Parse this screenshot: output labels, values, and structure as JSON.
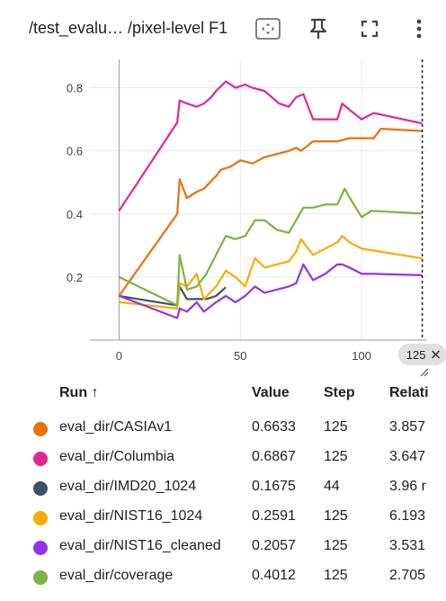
{
  "header": {
    "title": "/test_evalu… /pixel-level F1",
    "icons": [
      "fit-domain-icon",
      "pin-icon",
      "fullscreen-icon",
      "more-vert-icon"
    ]
  },
  "chart_data": {
    "type": "line",
    "title": "",
    "xlabel": "",
    "ylabel": "",
    "xlim": [
      -12,
      127
    ],
    "ylim": [
      0,
      0.89
    ],
    "x_ticks": [
      "0",
      "50",
      "100"
    ],
    "y_ticks": [
      "0.2",
      "0.4",
      "0.6",
      "0.8"
    ],
    "hover_x": 125,
    "hover_label": "125",
    "series": [
      {
        "name": "eval_dir/CASIAv1",
        "color": "#e8710a",
        "points": [
          [
            0,
            0.14
          ],
          [
            24,
            0.4
          ],
          [
            25,
            0.51
          ],
          [
            28,
            0.45
          ],
          [
            32,
            0.47
          ],
          [
            35,
            0.48
          ],
          [
            40,
            0.52
          ],
          [
            42,
            0.54
          ],
          [
            46,
            0.55
          ],
          [
            50,
            0.57
          ],
          [
            55,
            0.56
          ],
          [
            60,
            0.58
          ],
          [
            65,
            0.59
          ],
          [
            70,
            0.6
          ],
          [
            73,
            0.61
          ],
          [
            75,
            0.6
          ],
          [
            80,
            0.63
          ],
          [
            85,
            0.63
          ],
          [
            90,
            0.63
          ],
          [
            95,
            0.64
          ],
          [
            100,
            0.64
          ],
          [
            105,
            0.64
          ],
          [
            108,
            0.67
          ],
          [
            125,
            0.663
          ]
        ]
      },
      {
        "name": "eval_dir/Columbia",
        "color": "#e52592",
        "points": [
          [
            0,
            0.41
          ],
          [
            24,
            0.69
          ],
          [
            25,
            0.76
          ],
          [
            28,
            0.75
          ],
          [
            32,
            0.74
          ],
          [
            35,
            0.75
          ],
          [
            38,
            0.77
          ],
          [
            40,
            0.79
          ],
          [
            44,
            0.82
          ],
          [
            48,
            0.8
          ],
          [
            52,
            0.81
          ],
          [
            55,
            0.8
          ],
          [
            60,
            0.79
          ],
          [
            66,
            0.75
          ],
          [
            70,
            0.74
          ],
          [
            73,
            0.77
          ],
          [
            76,
            0.78
          ],
          [
            80,
            0.7
          ],
          [
            85,
            0.7
          ],
          [
            90,
            0.7
          ],
          [
            92,
            0.75
          ],
          [
            95,
            0.73
          ],
          [
            100,
            0.7
          ],
          [
            105,
            0.72
          ],
          [
            125,
            0.687
          ]
        ]
      },
      {
        "name": "eval_dir/IMD20_1024",
        "color": "#425066",
        "points": [
          [
            0,
            0.14
          ],
          [
            24,
            0.11
          ],
          [
            25,
            0.17
          ],
          [
            28,
            0.13
          ],
          [
            32,
            0.13
          ],
          [
            36,
            0.13
          ],
          [
            40,
            0.14
          ],
          [
            44,
            0.1675
          ]
        ]
      },
      {
        "name": "eval_dir/NIST16_1024",
        "color": "#f9ab00",
        "points": [
          [
            0,
            0.12
          ],
          [
            24,
            0.1
          ],
          [
            25,
            0.18
          ],
          [
            28,
            0.17
          ],
          [
            32,
            0.21
          ],
          [
            35,
            0.13
          ],
          [
            40,
            0.17
          ],
          [
            44,
            0.22
          ],
          [
            48,
            0.2
          ],
          [
            52,
            0.17
          ],
          [
            56,
            0.26
          ],
          [
            60,
            0.23
          ],
          [
            65,
            0.24
          ],
          [
            70,
            0.25
          ],
          [
            73,
            0.28
          ],
          [
            75,
            0.32
          ],
          [
            80,
            0.27
          ],
          [
            85,
            0.29
          ],
          [
            90,
            0.31
          ],
          [
            92,
            0.33
          ],
          [
            95,
            0.31
          ],
          [
            100,
            0.29
          ],
          [
            125,
            0.2591
          ]
        ]
      },
      {
        "name": "eval_dir/NIST16_cleaned",
        "color": "#9334e6",
        "points": [
          [
            0,
            0.14
          ],
          [
            24,
            0.07
          ],
          [
            25,
            0.1
          ],
          [
            28,
            0.09
          ],
          [
            32,
            0.12
          ],
          [
            35,
            0.09
          ],
          [
            40,
            0.12
          ],
          [
            44,
            0.14
          ],
          [
            48,
            0.12
          ],
          [
            52,
            0.14
          ],
          [
            56,
            0.17
          ],
          [
            60,
            0.15
          ],
          [
            65,
            0.16
          ],
          [
            70,
            0.17
          ],
          [
            73,
            0.18
          ],
          [
            76,
            0.24
          ],
          [
            80,
            0.19
          ],
          [
            85,
            0.21
          ],
          [
            90,
            0.24
          ],
          [
            92,
            0.24
          ],
          [
            95,
            0.23
          ],
          [
            100,
            0.21
          ],
          [
            105,
            0.21
          ],
          [
            125,
            0.2057
          ]
        ]
      },
      {
        "name": "eval_dir/coverage",
        "color": "#7cb342",
        "points": [
          [
            0,
            0.2
          ],
          [
            24,
            0.11
          ],
          [
            25,
            0.27
          ],
          [
            28,
            0.16
          ],
          [
            32,
            0.17
          ],
          [
            36,
            0.21
          ],
          [
            40,
            0.27
          ],
          [
            44,
            0.33
          ],
          [
            48,
            0.32
          ],
          [
            52,
            0.33
          ],
          [
            56,
            0.38
          ],
          [
            60,
            0.38
          ],
          [
            65,
            0.35
          ],
          [
            70,
            0.34
          ],
          [
            73,
            0.38
          ],
          [
            76,
            0.42
          ],
          [
            80,
            0.42
          ],
          [
            85,
            0.43
          ],
          [
            90,
            0.43
          ],
          [
            93,
            0.48
          ],
          [
            96,
            0.44
          ],
          [
            100,
            0.39
          ],
          [
            104,
            0.41
          ],
          [
            125,
            0.4012
          ]
        ]
      }
    ]
  },
  "table": {
    "headers": {
      "run": "Run ↑",
      "value": "Value",
      "step": "Step",
      "relative": "Relati"
    },
    "rows": [
      {
        "run": "eval_dir/CASIAv1",
        "value": "0.6633",
        "step": "125",
        "relative": "3.857",
        "color": "#e8710a"
      },
      {
        "run": "eval_dir/Columbia",
        "value": "0.6867",
        "step": "125",
        "relative": "3.647",
        "color": "#e52592"
      },
      {
        "run": "eval_dir/IMD20_1024",
        "value": "0.1675",
        "step": "44",
        "relative": "3.96 r",
        "color": "#425066"
      },
      {
        "run": "eval_dir/NIST16_1024",
        "value": "0.2591",
        "step": "125",
        "relative": "6.193",
        "color": "#f9ab00"
      },
      {
        "run": "eval_dir/NIST16_cleaned",
        "value": "0.2057",
        "step": "125",
        "relative": "3.531",
        "color": "#9334e6"
      },
      {
        "run": "eval_dir/coverage",
        "value": "0.4012",
        "step": "125",
        "relative": "2.705",
        "color": "#7cb342"
      }
    ]
  }
}
